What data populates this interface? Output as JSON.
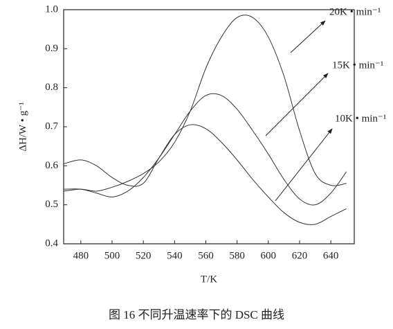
{
  "chart_data": {
    "type": "line",
    "x_label": "T/K",
    "y_label": "ΔH/W • g⁻¹",
    "caption": "图 16 不同升温速率下的 DSC 曲线",
    "x": [
      469,
      480,
      490,
      500,
      510,
      520,
      530,
      540,
      550,
      560,
      570,
      580,
      590,
      600,
      610,
      620,
      630,
      640,
      650
    ],
    "series": [
      {
        "name": "20K • min⁻¹",
        "color": "#333333",
        "values": [
          0.535,
          0.54,
          0.535,
          0.545,
          0.56,
          0.58,
          0.61,
          0.66,
          0.74,
          0.85,
          0.93,
          0.98,
          0.98,
          0.93,
          0.83,
          0.69,
          0.58,
          0.55,
          0.555
        ]
      },
      {
        "name": "15K • min⁻¹",
        "color": "#333333",
        "values": [
          0.54,
          0.54,
          0.53,
          0.52,
          0.535,
          0.57,
          0.62,
          0.68,
          0.74,
          0.78,
          0.78,
          0.745,
          0.69,
          0.63,
          0.565,
          0.515,
          0.5,
          0.53,
          0.585
        ]
      },
      {
        "name": "10K • min⁻¹",
        "color": "#333333",
        "values": [
          0.605,
          0.615,
          0.6,
          0.57,
          0.55,
          0.555,
          0.62,
          0.68,
          0.705,
          0.695,
          0.66,
          0.615,
          0.565,
          0.52,
          0.48,
          0.455,
          0.45,
          0.47,
          0.49
        ]
      }
    ],
    "xlim": [
      469,
      655
    ],
    "ylim": [
      0.4,
      1.0
    ],
    "xticks": [
      480,
      500,
      520,
      540,
      560,
      580,
      600,
      620,
      640
    ],
    "yticks": [
      0.4,
      0.5,
      0.6,
      0.7,
      0.8,
      0.9,
      {
        "value": 1.0,
        "label": "1.0"
      }
    ]
  }
}
